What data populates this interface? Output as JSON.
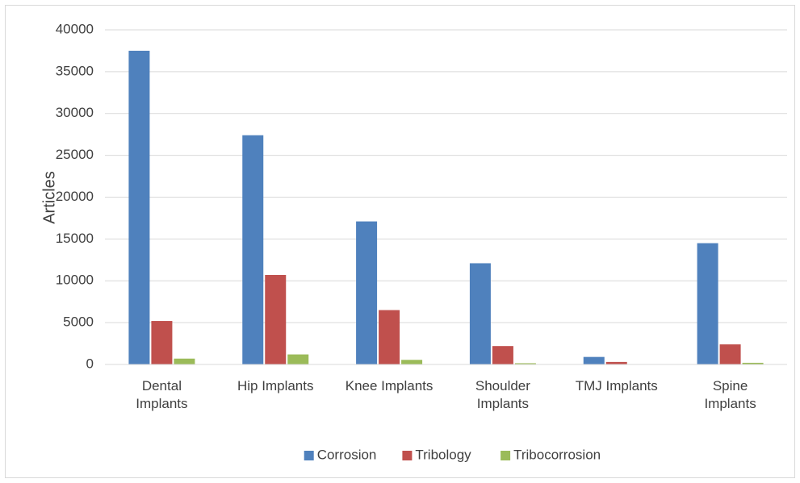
{
  "chart_data": {
    "type": "bar",
    "y_label": "Articles",
    "categories": [
      "Dental Implants",
      "Hip Implants",
      "Knee Implants",
      "Shoulder Implants",
      "TMJ Implants",
      "Spine Implants"
    ],
    "series": [
      {
        "name": "Corrosion",
        "color": "#4f81bd",
        "values": [
          37500,
          27400,
          17100,
          12100,
          900,
          14500
        ]
      },
      {
        "name": "Tribology",
        "color": "#c0504d",
        "values": [
          5200,
          10700,
          6500,
          2200,
          300,
          2400
        ]
      },
      {
        "name": "Tribocorrosion",
        "color": "#9bbb59",
        "values": [
          700,
          1200,
          550,
          150,
          30,
          200
        ]
      }
    ],
    "ylim": [
      0,
      40000
    ],
    "yticks": [
      0,
      5000,
      10000,
      15000,
      20000,
      25000,
      30000,
      35000,
      40000
    ],
    "grid": true,
    "legend": "bottom"
  }
}
